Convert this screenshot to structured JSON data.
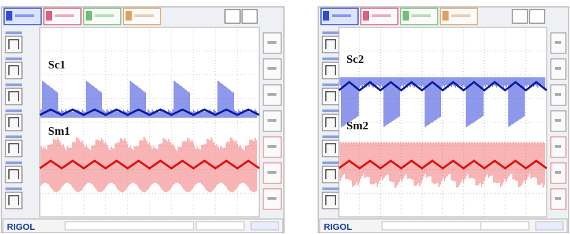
{
  "panels": [
    {
      "traces": [
        "Sc1",
        "Sm1"
      ],
      "brand": "RIGOL"
    },
    {
      "traces": [
        "Sc2",
        "Sm2"
      ],
      "brand": "RIGOL"
    }
  ]
}
